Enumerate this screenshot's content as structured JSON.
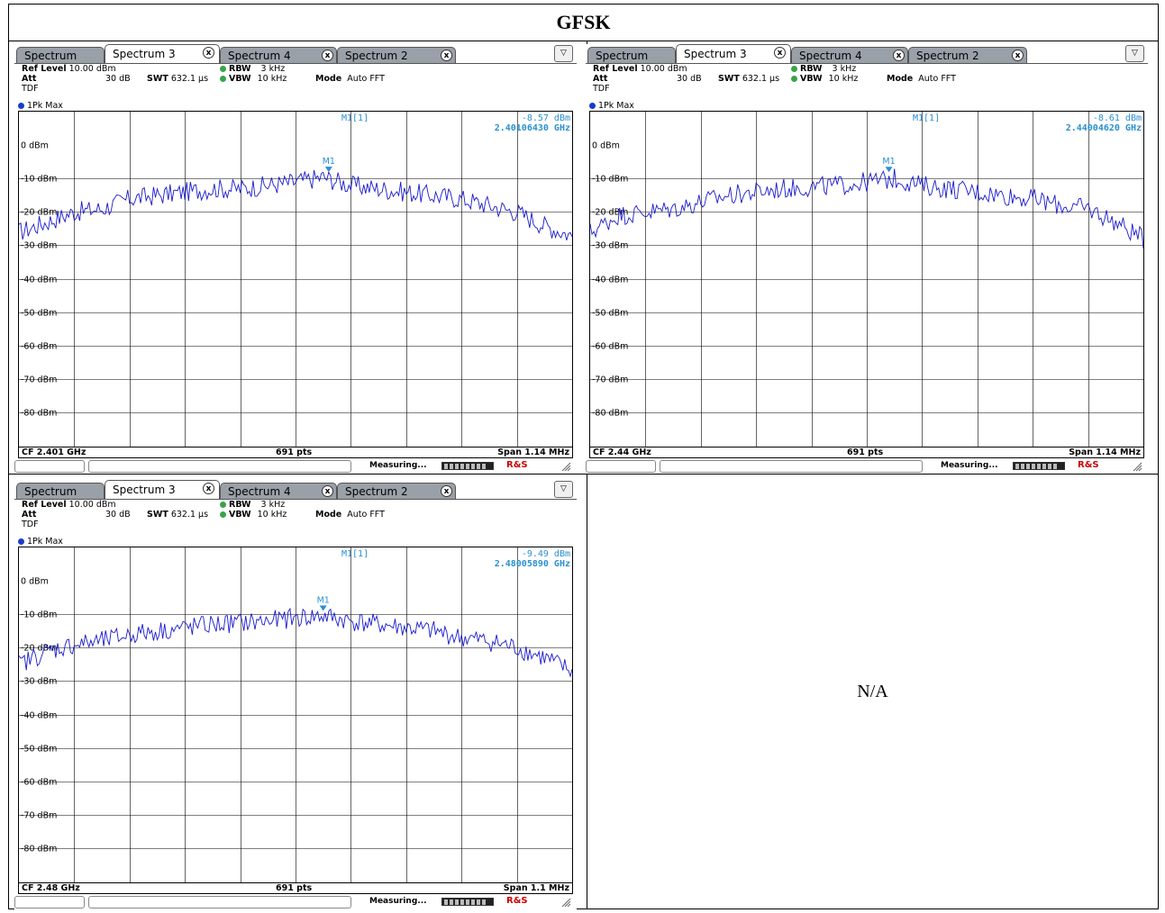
{
  "page": {
    "title": "GFSK",
    "na_label": "N/A"
  },
  "tabs": [
    "Spectrum",
    "Spectrum 3",
    "Spectrum 4",
    "Spectrum 2"
  ],
  "tab_close_glyph": "x",
  "labels": {
    "ref_level_label": "Ref Level",
    "att_label": "Att",
    "tdf": "TDF",
    "swt_label": "SWT",
    "rbw_label": "RBW",
    "vbw_label": "VBW",
    "mode_label": "Mode",
    "trace": "1Pk Max",
    "measuring": "Measuring...",
    "marker_name": "M1",
    "marker_readout_name": "M1[1]",
    "logo": "R&S"
  },
  "colors": {
    "trace": "#1a1acc",
    "marker": "#2a8fd0",
    "grid": "#000000",
    "tab_inactive": "#9aa0a8"
  },
  "analyzers": [
    {
      "settings": {
        "ref_level": "10.00 dBm",
        "att": "30 dB",
        "swt": "632.1 µs",
        "rbw": "3 kHz",
        "vbw": "10 kHz",
        "mode": "Auto FFT"
      },
      "marker": {
        "level": "-8.57 dBm",
        "freq": "2.40106430 GHz"
      },
      "footer": {
        "cf": "CF 2.401 GHz",
        "pts": "691 pts",
        "span": "Span 1.14 MHz"
      }
    },
    {
      "settings": {
        "ref_level": "10.00 dBm",
        "att": "30 dB",
        "swt": "632.1 µs",
        "rbw": "3 kHz",
        "vbw": "10 kHz",
        "mode": "Auto FFT"
      },
      "marker": {
        "level": "-8.61 dBm",
        "freq": "2.44004620 GHz"
      },
      "footer": {
        "cf": "CF 2.44 GHz",
        "pts": "691 pts",
        "span": "Span 1.14 MHz"
      }
    },
    {
      "settings": {
        "ref_level": "10.00 dBm",
        "att": "30 dB",
        "swt": "632.1 µs",
        "rbw": "3 kHz",
        "vbw": "10 kHz",
        "mode": "Auto FFT"
      },
      "marker": {
        "level": "-9.49 dBm",
        "freq": "2.48005890 GHz"
      },
      "footer": {
        "cf": "CF 2.48 GHz",
        "pts": "691 pts",
        "span": "Span 1.1 MHz"
      }
    }
  ],
  "chart_data": [
    {
      "type": "line",
      "title": "",
      "xlabel": "",
      "ylabel": "",
      "ylim": [
        -90,
        10
      ],
      "y_ticks": [
        "0 dBm",
        "-10 dBm",
        "-20 dBm",
        "-30 dBm",
        "-40 dBm",
        "-50 dBm",
        "-60 dBm",
        "-70 dBm",
        "-80 dBm"
      ],
      "grid": true,
      "x_fraction": [
        0,
        0.05,
        0.1,
        0.15,
        0.2,
        0.25,
        0.3,
        0.35,
        0.4,
        0.45,
        0.5,
        0.55,
        0.6,
        0.65,
        0.7,
        0.75,
        0.8,
        0.85,
        0.9,
        0.95,
        1.0
      ],
      "values": [
        -26,
        -23,
        -20,
        -19,
        -16,
        -15,
        -14,
        -13,
        -13,
        -12,
        -11,
        -9.5,
        -12,
        -13,
        -14,
        -15,
        -16,
        -18,
        -20,
        -24,
        -27
      ],
      "marker": {
        "x_fraction": 0.56,
        "value": -8.57
      }
    },
    {
      "type": "line",
      "title": "",
      "xlabel": "",
      "ylabel": "",
      "ylim": [
        -90,
        10
      ],
      "y_ticks": [
        "0 dBm",
        "-10 dBm",
        "-20 dBm",
        "-30 dBm",
        "-40 dBm",
        "-50 dBm",
        "-60 dBm",
        "-70 dBm",
        "-80 dBm"
      ],
      "grid": true,
      "x_fraction": [
        0,
        0.05,
        0.1,
        0.15,
        0.2,
        0.25,
        0.3,
        0.35,
        0.4,
        0.45,
        0.5,
        0.55,
        0.6,
        0.65,
        0.7,
        0.75,
        0.8,
        0.85,
        0.9,
        0.95,
        1.0
      ],
      "values": [
        -26,
        -21,
        -20,
        -19,
        -17,
        -15,
        -14,
        -13,
        -12.5,
        -12,
        -11,
        -10,
        -12,
        -13,
        -14,
        -15,
        -16,
        -18,
        -19,
        -23,
        -28
      ],
      "marker": {
        "x_fraction": 0.54,
        "value": -8.61
      }
    },
    {
      "type": "line",
      "title": "",
      "xlabel": "",
      "ylabel": "",
      "ylim": [
        -90,
        10
      ],
      "y_ticks": [
        "0 dBm",
        "-10 dBm",
        "-20 dBm",
        "-30 dBm",
        "-40 dBm",
        "-50 dBm",
        "-60 dBm",
        "-70 dBm",
        "-80 dBm"
      ],
      "grid": true,
      "x_fraction": [
        0,
        0.05,
        0.1,
        0.15,
        0.2,
        0.25,
        0.3,
        0.35,
        0.4,
        0.45,
        0.5,
        0.55,
        0.6,
        0.65,
        0.7,
        0.75,
        0.8,
        0.85,
        0.9,
        0.95,
        1.0
      ],
      "values": [
        -25,
        -21,
        -19,
        -18,
        -16,
        -15,
        -14,
        -13,
        -12.5,
        -12,
        -11,
        -10.5,
        -12,
        -13,
        -14,
        -15,
        -17,
        -18,
        -20,
        -23,
        -27
      ],
      "marker": {
        "x_fraction": 0.55,
        "value": -9.49
      }
    }
  ]
}
